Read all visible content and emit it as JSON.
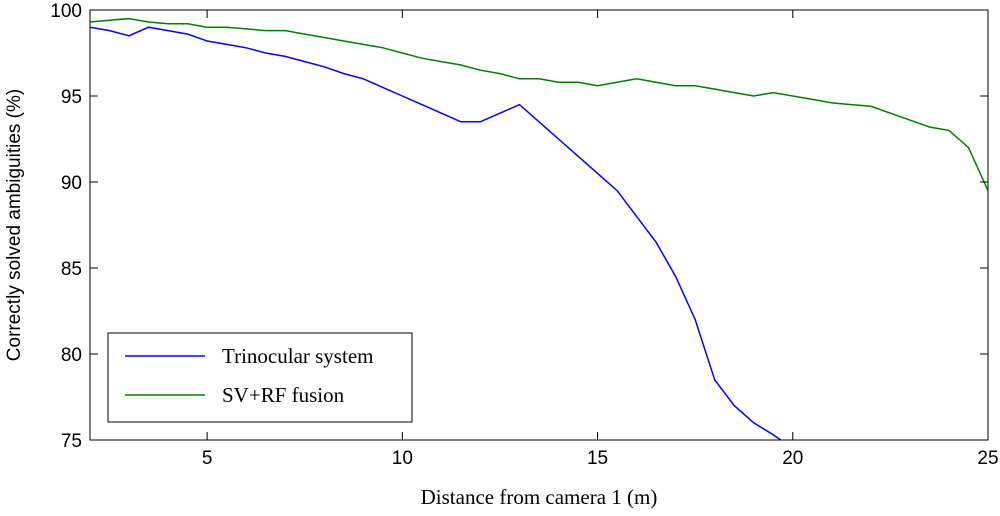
{
  "chart_data": {
    "type": "line",
    "title": "",
    "xlabel": "Distance from camera 1 (m)",
    "ylabel": "Correctly solved ambiguities (%)",
    "xlim": [
      2,
      25
    ],
    "ylim": [
      75,
      100
    ],
    "xticks": [
      5,
      10,
      15,
      20,
      25
    ],
    "yticks": [
      75,
      80,
      85,
      90,
      95,
      100
    ],
    "xtick_labels": [
      "5",
      "10",
      "15",
      "20",
      "25"
    ],
    "ytick_labels": [
      "75",
      "80",
      "85",
      "90",
      "95",
      "100"
    ],
    "grid": false,
    "legend_position": "bottom-left",
    "series": [
      {
        "name": "Trinocular system",
        "color": "#0000ff",
        "x": [
          2.0,
          2.5,
          3.0,
          3.5,
          4.0,
          4.5,
          5.0,
          5.5,
          6.0,
          6.5,
          7.0,
          7.5,
          8.0,
          8.5,
          9.0,
          9.5,
          10.0,
          10.5,
          11.0,
          11.5,
          12.0,
          12.5,
          13.0,
          13.5,
          14.0,
          14.5,
          15.0,
          15.5,
          16.0,
          16.5,
          17.0,
          17.5,
          18.0,
          18.5,
          19.0,
          19.5,
          20.0
        ],
        "y": [
          99.0,
          98.8,
          98.5,
          99.0,
          98.8,
          98.6,
          98.2,
          98.0,
          97.8,
          97.5,
          97.3,
          97.0,
          96.7,
          96.3,
          96.0,
          95.5,
          95.0,
          94.5,
          94.0,
          93.5,
          93.5,
          94.0,
          94.5,
          93.5,
          92.5,
          91.5,
          90.5,
          89.5,
          88.0,
          86.5,
          84.5,
          82.0,
          78.5,
          77.0,
          76.0,
          75.3,
          74.5
        ]
      },
      {
        "name": "SV+RF fusion",
        "color": "#008000",
        "x": [
          2.0,
          2.5,
          3.0,
          3.5,
          4.0,
          4.5,
          5.0,
          5.5,
          6.0,
          6.5,
          7.0,
          7.5,
          8.0,
          8.5,
          9.0,
          9.5,
          10.0,
          10.5,
          11.0,
          11.5,
          12.0,
          12.5,
          13.0,
          13.5,
          14.0,
          14.5,
          15.0,
          15.5,
          16.0,
          16.5,
          17.0,
          17.5,
          18.0,
          18.5,
          19.0,
          19.5,
          20.0,
          20.5,
          21.0,
          21.5,
          22.0,
          22.5,
          23.0,
          23.5,
          24.0,
          24.5,
          25.0
        ],
        "y": [
          99.3,
          99.4,
          99.5,
          99.3,
          99.2,
          99.2,
          99.0,
          99.0,
          98.9,
          98.8,
          98.8,
          98.6,
          98.4,
          98.2,
          98.0,
          97.8,
          97.5,
          97.2,
          97.0,
          96.8,
          96.5,
          96.3,
          96.0,
          96.0,
          95.8,
          95.8,
          95.6,
          95.8,
          96.0,
          95.8,
          95.6,
          95.6,
          95.4,
          95.2,
          95.0,
          95.2,
          95.0,
          94.8,
          94.6,
          94.5,
          94.4,
          94.0,
          93.6,
          93.2,
          93.0,
          92.0,
          89.5
        ]
      }
    ]
  }
}
